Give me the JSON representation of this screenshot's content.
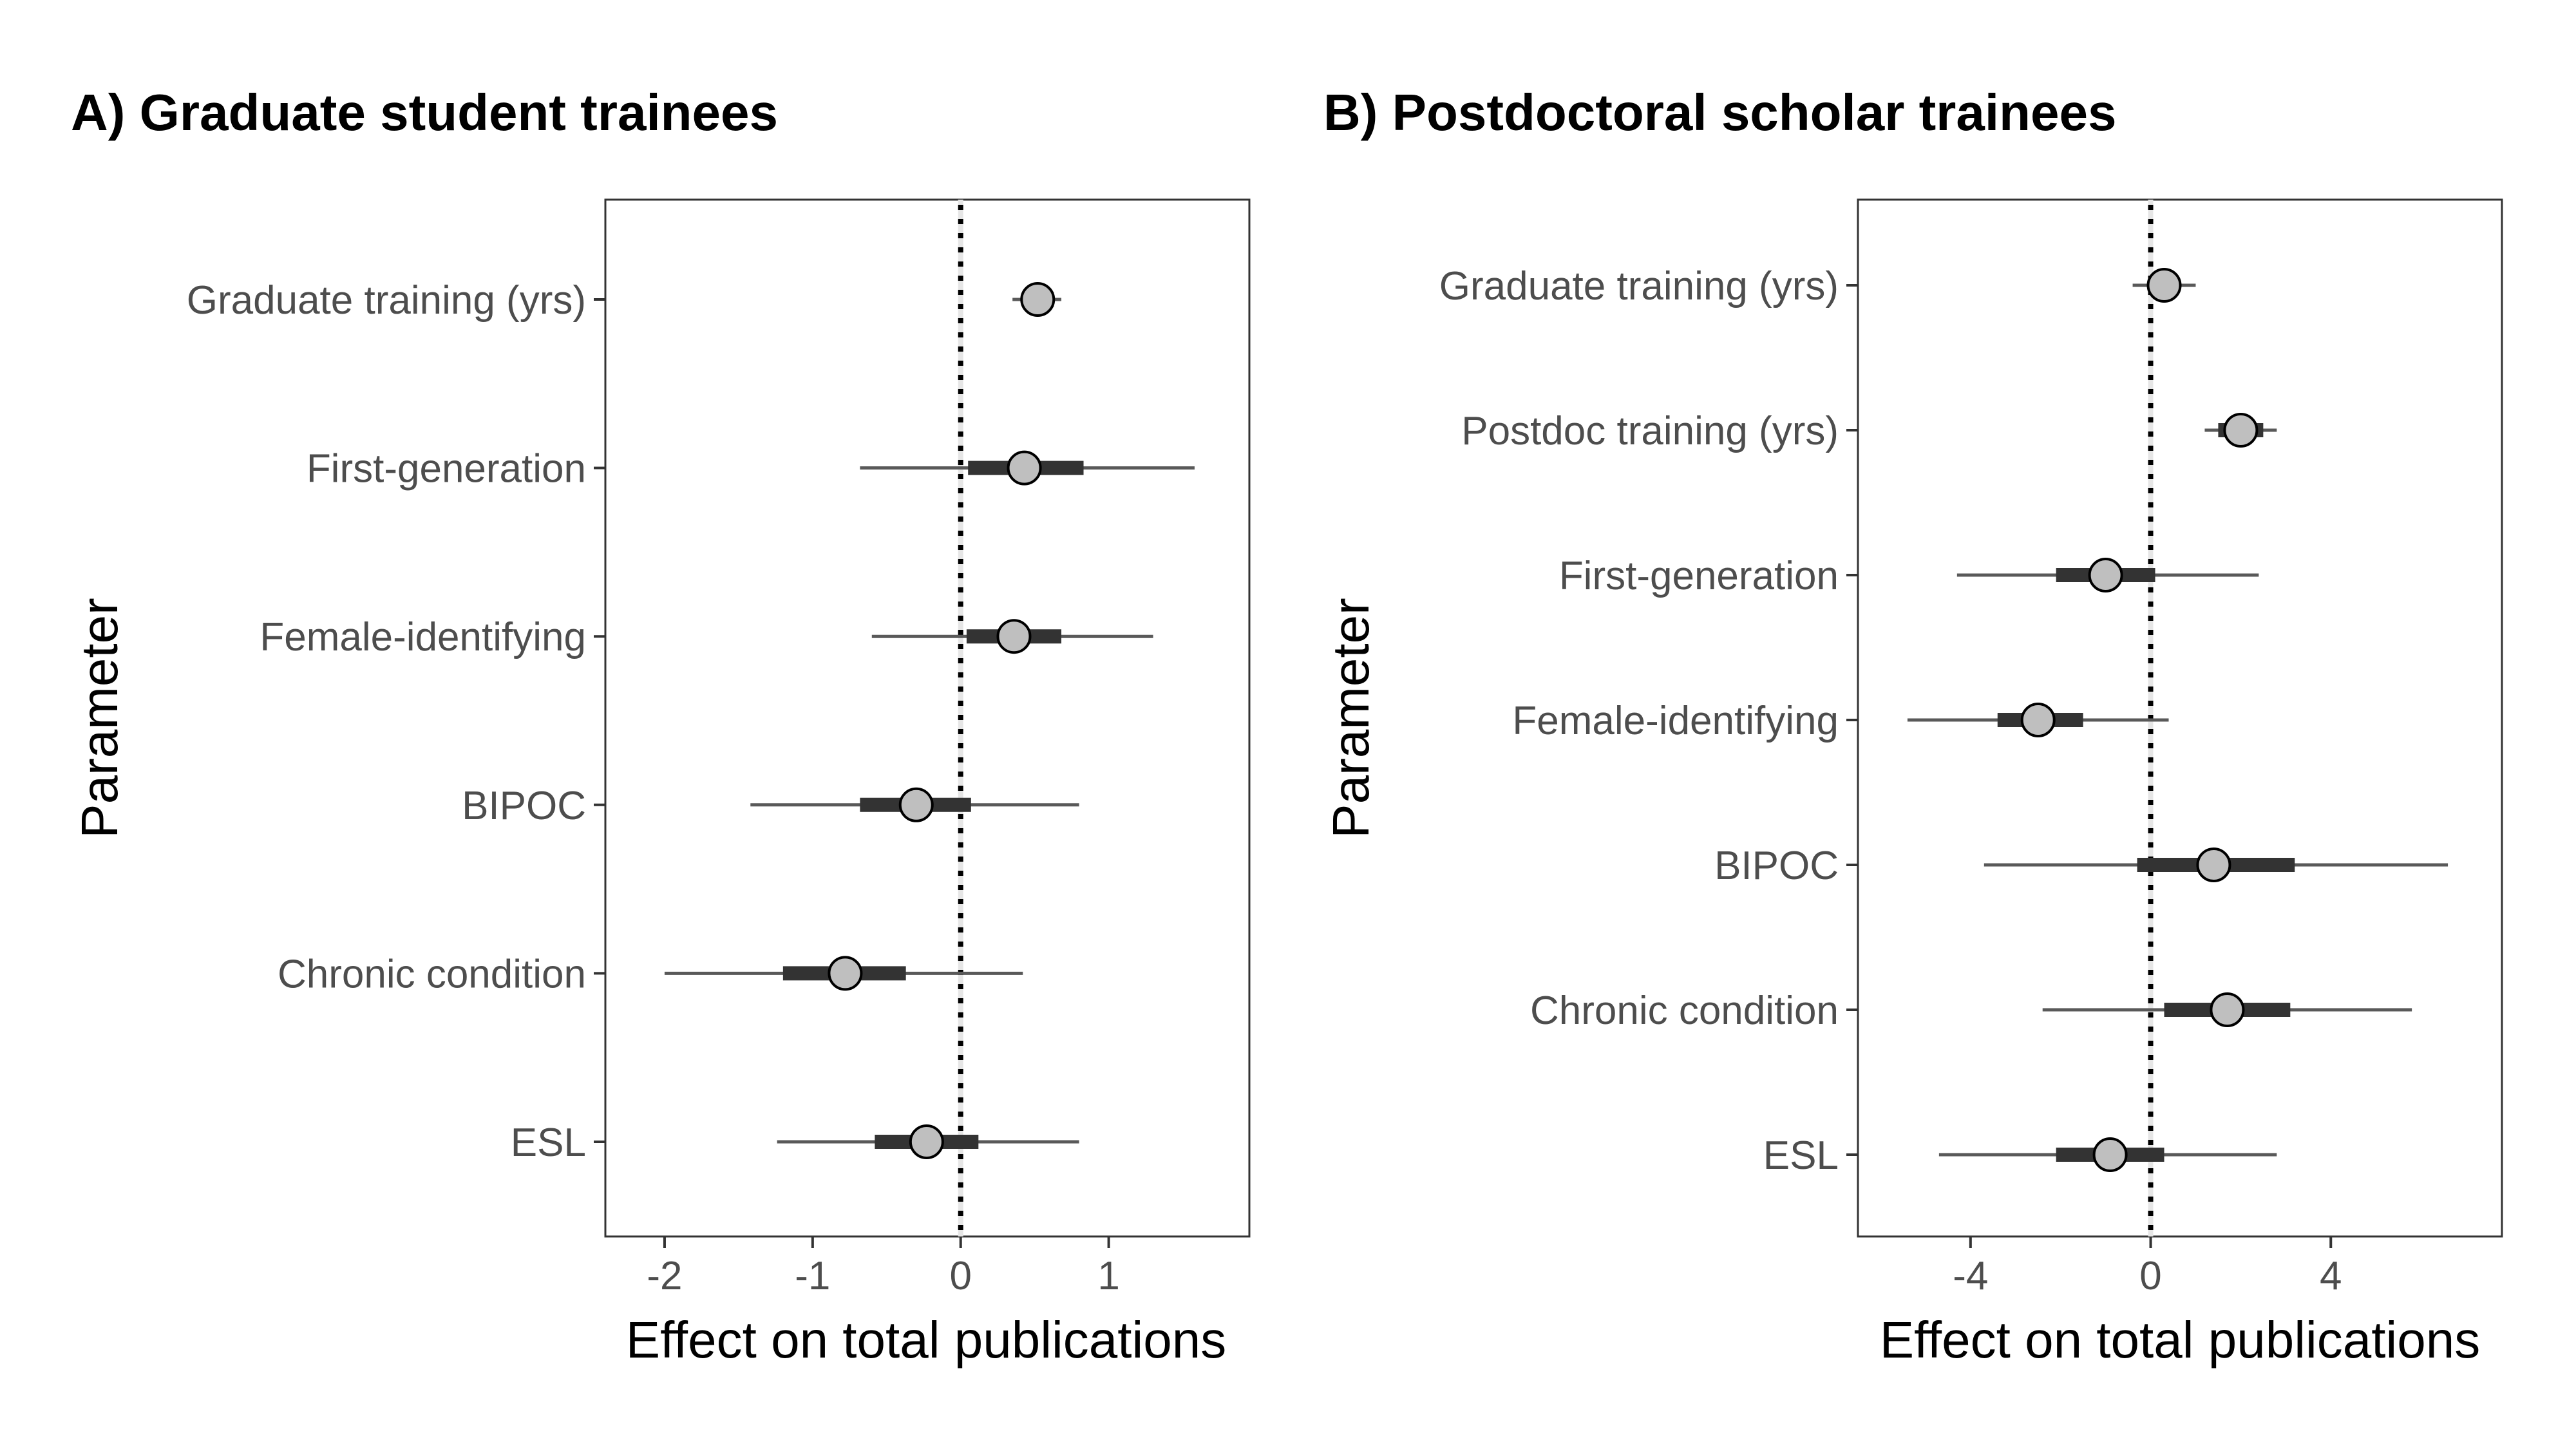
{
  "chart_data": [
    {
      "type": "scatter",
      "title": "A) Graduate student trainees",
      "xlabel": "Effect on total publications",
      "ylabel": "Parameter",
      "xlim": [
        -2.4,
        1.95
      ],
      "xticks": [
        "-2",
        "-1",
        "0",
        "1"
      ],
      "xtick_values": [
        -2,
        -1,
        0,
        1
      ],
      "reference_line": 0,
      "grid": false,
      "categories": [
        "Graduate training (yrs)",
        "First-generation",
        "Female-identifying",
        "BIPOC",
        "Chronic condition",
        "ESL"
      ],
      "series": [
        {
          "estimate": [
            0.52,
            0.43,
            0.36,
            -0.3,
            -0.78,
            -0.23
          ],
          "inner_interval": [
            [
              0.42,
              0.63
            ],
            [
              0.05,
              0.83
            ],
            [
              0.04,
              0.68
            ],
            [
              -0.68,
              0.07
            ],
            [
              -1.2,
              -0.37
            ],
            [
              -0.58,
              0.12
            ]
          ],
          "outer_interval": [
            [
              0.35,
              0.68
            ],
            [
              -0.68,
              1.58
            ],
            [
              -0.6,
              1.3
            ],
            [
              -1.42,
              0.8
            ],
            [
              -2.0,
              0.42
            ],
            [
              -1.24,
              0.8
            ]
          ]
        }
      ]
    },
    {
      "type": "scatter",
      "title": "B) Postdoctoral scholar trainees",
      "xlabel": "Effect on total publications",
      "ylabel": "Parameter",
      "xlim": [
        -6.5,
        7.8
      ],
      "xticks": [
        "-4",
        "0",
        "4"
      ],
      "xtick_values": [
        -4,
        0,
        4
      ],
      "reference_line": 0,
      "grid": false,
      "categories": [
        "Graduate training (yrs)",
        "Postdoc training (yrs)",
        "First-generation",
        "Female-identifying",
        "BIPOC",
        "Chronic condition",
        "ESL"
      ],
      "series": [
        {
          "estimate": [
            0.3,
            2.0,
            -1.0,
            -2.5,
            1.4,
            1.7,
            -0.9
          ],
          "inner_interval": [
            [
              0.0,
              0.6
            ],
            [
              1.5,
              2.5
            ],
            [
              -2.1,
              0.1
            ],
            [
              -3.4,
              -1.5
            ],
            [
              -0.3,
              3.2
            ],
            [
              0.3,
              3.1
            ],
            [
              -2.1,
              0.3
            ]
          ],
          "outer_interval": [
            [
              -0.4,
              1.0
            ],
            [
              1.2,
              2.8
            ],
            [
              -4.3,
              2.4
            ],
            [
              -5.4,
              0.4
            ],
            [
              -3.7,
              6.6
            ],
            [
              -2.4,
              5.8
            ],
            [
              -4.7,
              2.8
            ]
          ]
        }
      ]
    }
  ]
}
